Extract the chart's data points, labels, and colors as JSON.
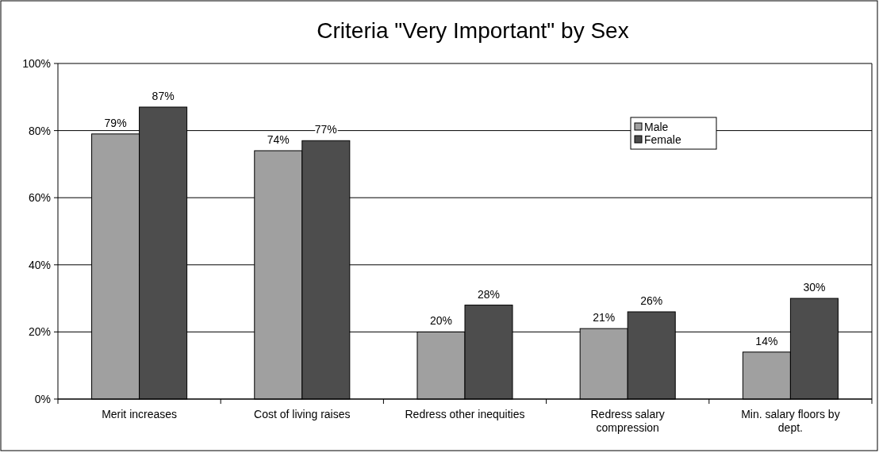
{
  "chart_data": {
    "type": "bar",
    "title": "Criteria \"Very Important\" by Sex",
    "categories": [
      "Merit increases",
      "Cost of living raises",
      "Redress other inequities",
      "Redress salary compression",
      "Min. salary floors by dept."
    ],
    "series": [
      {
        "name": "Male",
        "color": "#a0a0a0",
        "values": [
          79,
          74,
          20,
          21,
          14
        ],
        "value_labels": [
          "79%",
          "74%",
          "20%",
          "21%",
          "14%"
        ]
      },
      {
        "name": "Female",
        "color": "#4d4d4d",
        "values": [
          87,
          77,
          28,
          26,
          30
        ],
        "value_labels": [
          "87%",
          "77%",
          "28%",
          "26%",
          "30%"
        ]
      }
    ],
    "ylim": [
      0,
      100
    ],
    "yticks": [
      {
        "value": 0,
        "label": "0%"
      },
      {
        "value": 20,
        "label": "20%"
      },
      {
        "value": 40,
        "label": "40%"
      },
      {
        "value": 60,
        "label": "60%"
      },
      {
        "value": 80,
        "label": "80%"
      },
      {
        "value": 100,
        "label": "100%"
      }
    ],
    "grid": "y",
    "legend": "top right"
  }
}
